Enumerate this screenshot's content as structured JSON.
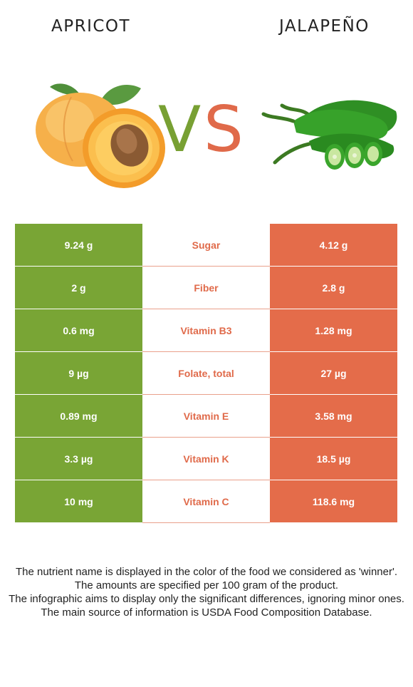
{
  "foods": {
    "left": "APRICOT",
    "right": "JALAPEÑO"
  },
  "vs": {
    "v": "V",
    "s": "S"
  },
  "colors": {
    "winner_left": "#79a535",
    "winner_right": "#e46c4a",
    "nutrient_label": "#e06a4a"
  },
  "chart_data": {
    "type": "table",
    "columns": [
      "APRICOT",
      "",
      "JALAPEÑO"
    ],
    "rows": [
      {
        "left": "9.24 g",
        "nutrient": "Sugar",
        "right": "4.12 g"
      },
      {
        "left": "2 g",
        "nutrient": "Fiber",
        "right": "2.8 g"
      },
      {
        "left": "0.6 mg",
        "nutrient": "Vitamin B3",
        "right": "1.28 mg"
      },
      {
        "left": "9 µg",
        "nutrient": "Folate, total",
        "right": "27 µg"
      },
      {
        "left": "0.89 mg",
        "nutrient": "Vitamin E",
        "right": "3.58 mg"
      },
      {
        "left": "3.3 µg",
        "nutrient": "Vitamin K",
        "right": "18.5 µg"
      },
      {
        "left": "10 mg",
        "nutrient": "Vitamin C",
        "right": "118.6 mg"
      }
    ]
  },
  "footer": [
    "The nutrient name is displayed in the color of the food we considered as 'winner'.",
    "The amounts are specified per 100 gram of the product.",
    "The infographic aims to display only the significant differences, ignoring minor ones.",
    "The main source of information is USDA Food Composition Database."
  ]
}
